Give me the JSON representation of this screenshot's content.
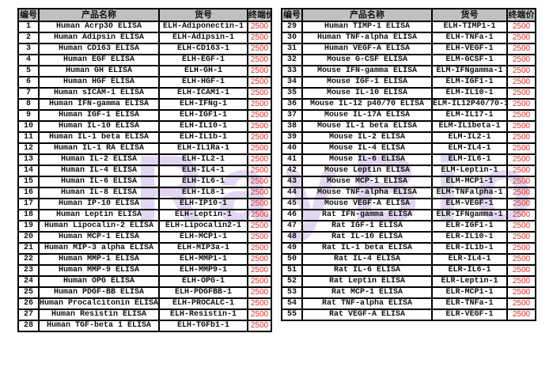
{
  "watermark": "RayBio",
  "headers": {
    "no": "编号",
    "name": "产品名称",
    "code": "货号",
    "price": "终端价"
  },
  "colors": {
    "price": "#e0302a",
    "header_bg": "#c0c0c0"
  },
  "left_rows": [
    [
      "1",
      "Human Acrp30 ELISA",
      "ELH-Adiponectin-1",
      "2500"
    ],
    [
      "2",
      "Human Adipsin ELISA",
      "ELH-Adipsin-1",
      "2500"
    ],
    [
      "3",
      "Human CD163 ELISA",
      "ELH-CD163-1",
      "2500"
    ],
    [
      "4",
      "Human EGF ELISA",
      "ELH-EGF-1",
      "2500"
    ],
    [
      "5",
      "Human GH ELISA",
      "ELH-GH-1",
      "2500"
    ],
    [
      "6",
      "Human HGF ELISA",
      "ELH-HGF-1",
      "2500"
    ],
    [
      "7",
      "Human sICAM-1 ELISA",
      "ELH-ICAM1-1",
      "2500"
    ],
    [
      "8",
      "Human IFN-gamma ELISA",
      "ELH-IFNg-1",
      "2500"
    ],
    [
      "9",
      "Human IGF-1 ELISA",
      "ELH-IGF1-1",
      "2500"
    ],
    [
      "10",
      "Human IL-10 ELISA",
      "ELH-IL10-1",
      "2500"
    ],
    [
      "11",
      "Human IL-1 beta ELISA",
      "ELH-IL1b-1",
      "2500"
    ],
    [
      "12",
      "Human IL-1 RA ELISA",
      "ELH-IL1Ra-1",
      "2500"
    ],
    [
      "13",
      "Human IL-2 ELISA",
      "ELH-IL2-1",
      "2500"
    ],
    [
      "14",
      "Human IL-4 ELISA",
      "ELH-IL4-1",
      "2500"
    ],
    [
      "15",
      "Human IL-6 ELISA",
      "ELH-IL6-1",
      "2500"
    ],
    [
      "16",
      "Human IL-8 ELISA",
      "ELH-IL8-1",
      "2500"
    ],
    [
      "17",
      "Human IP-10 ELISA",
      "ELH-IP10-1",
      "2500"
    ],
    [
      "18",
      "Human Leptin ELISA",
      "ELH-Leptin-1",
      "2500"
    ],
    [
      "19",
      "Human Lipocalin-2  ELISA",
      "ELH-Lipocalin2-1",
      "2500"
    ],
    [
      "20",
      "Human MCP-1 ELISA",
      "ELH-MCP1-1",
      "2500"
    ],
    [
      "21",
      "Human MIP-3 alpha ELISA",
      "ELH-MIP3a-1",
      "2500"
    ],
    [
      "22",
      "Human MMP-1 ELISA",
      "ELH-MMP1-1",
      "2500"
    ],
    [
      "23",
      "Human MMP-9 ELISA",
      "ELH-MMP9-1",
      "2500"
    ],
    [
      "24",
      "Human OPG ELISA",
      "ELH-OPG-1",
      "2500"
    ],
    [
      "25",
      "Human PDGF-BB ELISA",
      "ELH-PDGFBB-1",
      "2500"
    ],
    [
      "26",
      "Human Procalcitonin ELISA",
      "ELH-PROCALC-1",
      "2500"
    ],
    [
      "27",
      "Human Resistin ELISA",
      "ELH-Resistin-1",
      "2500"
    ],
    [
      "28",
      "Human TGF-beta 1 ELISA",
      "ELH-TGFb1-1",
      "2500"
    ]
  ],
  "right_rows": [
    [
      "29",
      "Human TIMP-1 ELISA",
      "ELH-TIMP1-1",
      "2500"
    ],
    [
      "30",
      "Human TNF-alpha ELISA",
      "ELH-TNFa-1",
      "2500"
    ],
    [
      "31",
      "Human VEGF-A ELISA",
      "ELH-VEGF-1",
      "2500"
    ],
    [
      "32",
      "Mouse G-CSF ELISA",
      "ELM-GCSF-1",
      "2500"
    ],
    [
      "33",
      "Mouse IFN-gamma ELISA",
      "ELM-IFNgamma-1",
      "2500"
    ],
    [
      "34",
      "Mouse IGF-1 ELISA",
      "ELM-IGF1-1",
      "2500"
    ],
    [
      "35",
      "Mouse IL-10 ELISA",
      "ELM-IL10-1",
      "2500"
    ],
    [
      "36",
      "Mouse IL-12 p40/70 ELISA",
      "ELM-IL12P40/70-1",
      "2500"
    ],
    [
      "37",
      "Mouse IL-17A ELISA",
      "ELM-IL17-1",
      "2500"
    ],
    [
      "38",
      "Mouse IL-1 beta ELISA",
      "ELM-IL1beta-1",
      "2500"
    ],
    [
      "39",
      "Mouse IL-2 ELISA",
      "ELM-IL2-1",
      "2500"
    ],
    [
      "40",
      "Mouse IL-4 ELISA",
      "ELM-IL4-1",
      "2500"
    ],
    [
      "41",
      "Mouse IL-6 ELISA",
      "ELM-IL6-1",
      "2500"
    ],
    [
      "42",
      "Mouse Leptin ELISA",
      "ELM-Leptin-1",
      "2500"
    ],
    [
      "43",
      "Mouse MCP-1 ELISA",
      "ELM-MCP1-1",
      "2500"
    ],
    [
      "44",
      "Mouse TNF-alpha ELISA",
      "ELM-TNFalpha-1",
      "2500"
    ],
    [
      "45",
      "Mouse VEGF-A ELISA",
      "ELM-VEGF-1",
      "2500"
    ],
    [
      "46",
      "Rat IFN-gamma ELISA",
      "ELR-IFNgamma-1",
      "2500"
    ],
    [
      "47",
      "Rat IGF-1 ELISA",
      "ELR-IGF1-1",
      "2500"
    ],
    [
      "48",
      "Rat IL-10 ELISA",
      "ELR-IL10-1",
      "2500"
    ],
    [
      "49",
      "Rat IL-1 beta ELISA",
      "ELR-IL1b-1",
      "2500"
    ],
    [
      "50",
      "Rat IL-4 ELISA",
      "ELR-IL4-1",
      "2500"
    ],
    [
      "51",
      "Rat IL-6 ELISA",
      "ELR-IL6-1",
      "2500"
    ],
    [
      "52",
      "Rat Leptin ELISA",
      "ELR-Leptin-1",
      "2500"
    ],
    [
      "53",
      "Rat MCP-1 ELISA",
      "ELR-MCP1-1",
      "2500"
    ],
    [
      "54",
      "Rat TNF-alpha ELISA",
      "ELR-TNFa-1",
      "2500"
    ],
    [
      "55",
      "Rat VEGF-A ELISA",
      "ELR-VEGF-1",
      "2500"
    ]
  ]
}
